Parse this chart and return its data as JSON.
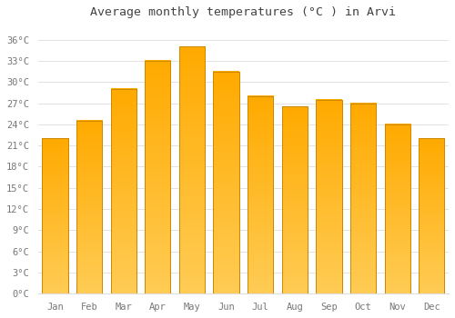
{
  "title": "Average monthly temperatures (°C ) in Arvi",
  "months": [
    "Jan",
    "Feb",
    "Mar",
    "Apr",
    "May",
    "Jun",
    "Jul",
    "Aug",
    "Sep",
    "Oct",
    "Nov",
    "Dec"
  ],
  "temperatures": [
    22,
    24.5,
    29,
    33,
    35,
    31.5,
    28,
    26.5,
    27.5,
    27,
    24,
    22
  ],
  "bar_color_top": "#FFAA00",
  "bar_color_bottom": "#FFCC55",
  "bar_edge_color": "#CC8800",
  "background_color": "#FFFFFF",
  "grid_color": "#DDDDDD",
  "text_color": "#777777",
  "title_color": "#444444",
  "ylim": [
    0,
    38
  ],
  "yticks": [
    0,
    3,
    6,
    9,
    12,
    15,
    18,
    21,
    24,
    27,
    30,
    33,
    36
  ],
  "title_fontsize": 9.5,
  "tick_fontsize": 7.5,
  "bar_width": 0.75
}
